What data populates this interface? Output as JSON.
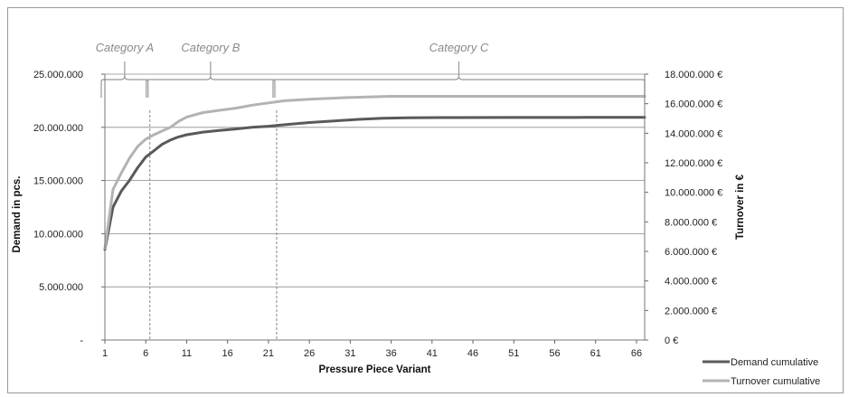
{
  "chart_data": {
    "type": "line",
    "xlabel": "Pressure Piece Variant",
    "ylabel": "Demand in pcs.",
    "y2label": "Turnover in €",
    "x_ticks": [
      "1",
      "6",
      "11",
      "16",
      "21",
      "26",
      "31",
      "36",
      "41",
      "46",
      "51",
      "56",
      "61",
      "66"
    ],
    "y_ticks": [
      "-",
      "5.000.000",
      "10.000.000",
      "15.000.000",
      "20.000.000",
      "25.000.000"
    ],
    "y2_ticks": [
      "0 €",
      "2.000.000 €",
      "4.000.000 €",
      "6.000.000 €",
      "8.000.000 €",
      "10.000.000 €",
      "12.000.000 €",
      "14.000.000 €",
      "16.000.000 €",
      "18.000.000 €"
    ],
    "ylim": [
      0,
      25000000
    ],
    "y2lim": [
      0,
      18000000
    ],
    "xlim": [
      1,
      67
    ],
    "grid": true,
    "legend_position": "bottom-right",
    "categories": [
      {
        "label": "Category A",
        "from": 1,
        "to": 6.5
      },
      {
        "label": "Category B",
        "from": 6.5,
        "to": 22
      },
      {
        "label": "Category C",
        "from": 22,
        "to": 67
      }
    ],
    "dividers": [
      6.5,
      22
    ],
    "series": [
      {
        "name": "Demand cumulative",
        "axis": "left",
        "color": "#595959",
        "points": [
          [
            1,
            8500000
          ],
          [
            2,
            12500000
          ],
          [
            3,
            14000000
          ],
          [
            4,
            15000000
          ],
          [
            5,
            16200000
          ],
          [
            6,
            17200000
          ],
          [
            7,
            17800000
          ],
          [
            8,
            18400000
          ],
          [
            9,
            18800000
          ],
          [
            10,
            19100000
          ],
          [
            11,
            19300000
          ],
          [
            13,
            19550000
          ],
          [
            15,
            19700000
          ],
          [
            17,
            19850000
          ],
          [
            19,
            20000000
          ],
          [
            21,
            20100000
          ],
          [
            23,
            20250000
          ],
          [
            26,
            20450000
          ],
          [
            29,
            20600000
          ],
          [
            32,
            20750000
          ],
          [
            35,
            20850000
          ],
          [
            38,
            20900000
          ],
          [
            42,
            20920000
          ],
          [
            50,
            20930000
          ],
          [
            60,
            20935000
          ],
          [
            67,
            20935000
          ]
        ]
      },
      {
        "name": "Turnover cumulative",
        "axis": "right",
        "color": "#b3b3b3",
        "points": [
          [
            1,
            6200000
          ],
          [
            2,
            10200000
          ],
          [
            3,
            11300000
          ],
          [
            4,
            12300000
          ],
          [
            5,
            13100000
          ],
          [
            6,
            13600000
          ],
          [
            7,
            13900000
          ],
          [
            8,
            14150000
          ],
          [
            9,
            14400000
          ],
          [
            10,
            14800000
          ],
          [
            11,
            15100000
          ],
          [
            13,
            15400000
          ],
          [
            15,
            15550000
          ],
          [
            17,
            15700000
          ],
          [
            19,
            15900000
          ],
          [
            21,
            16050000
          ],
          [
            23,
            16200000
          ],
          [
            26,
            16300000
          ],
          [
            30,
            16400000
          ],
          [
            33,
            16450000
          ],
          [
            36,
            16500000
          ],
          [
            40,
            16500000
          ],
          [
            50,
            16500000
          ],
          [
            60,
            16500000
          ],
          [
            67,
            16500000
          ]
        ]
      }
    ]
  }
}
